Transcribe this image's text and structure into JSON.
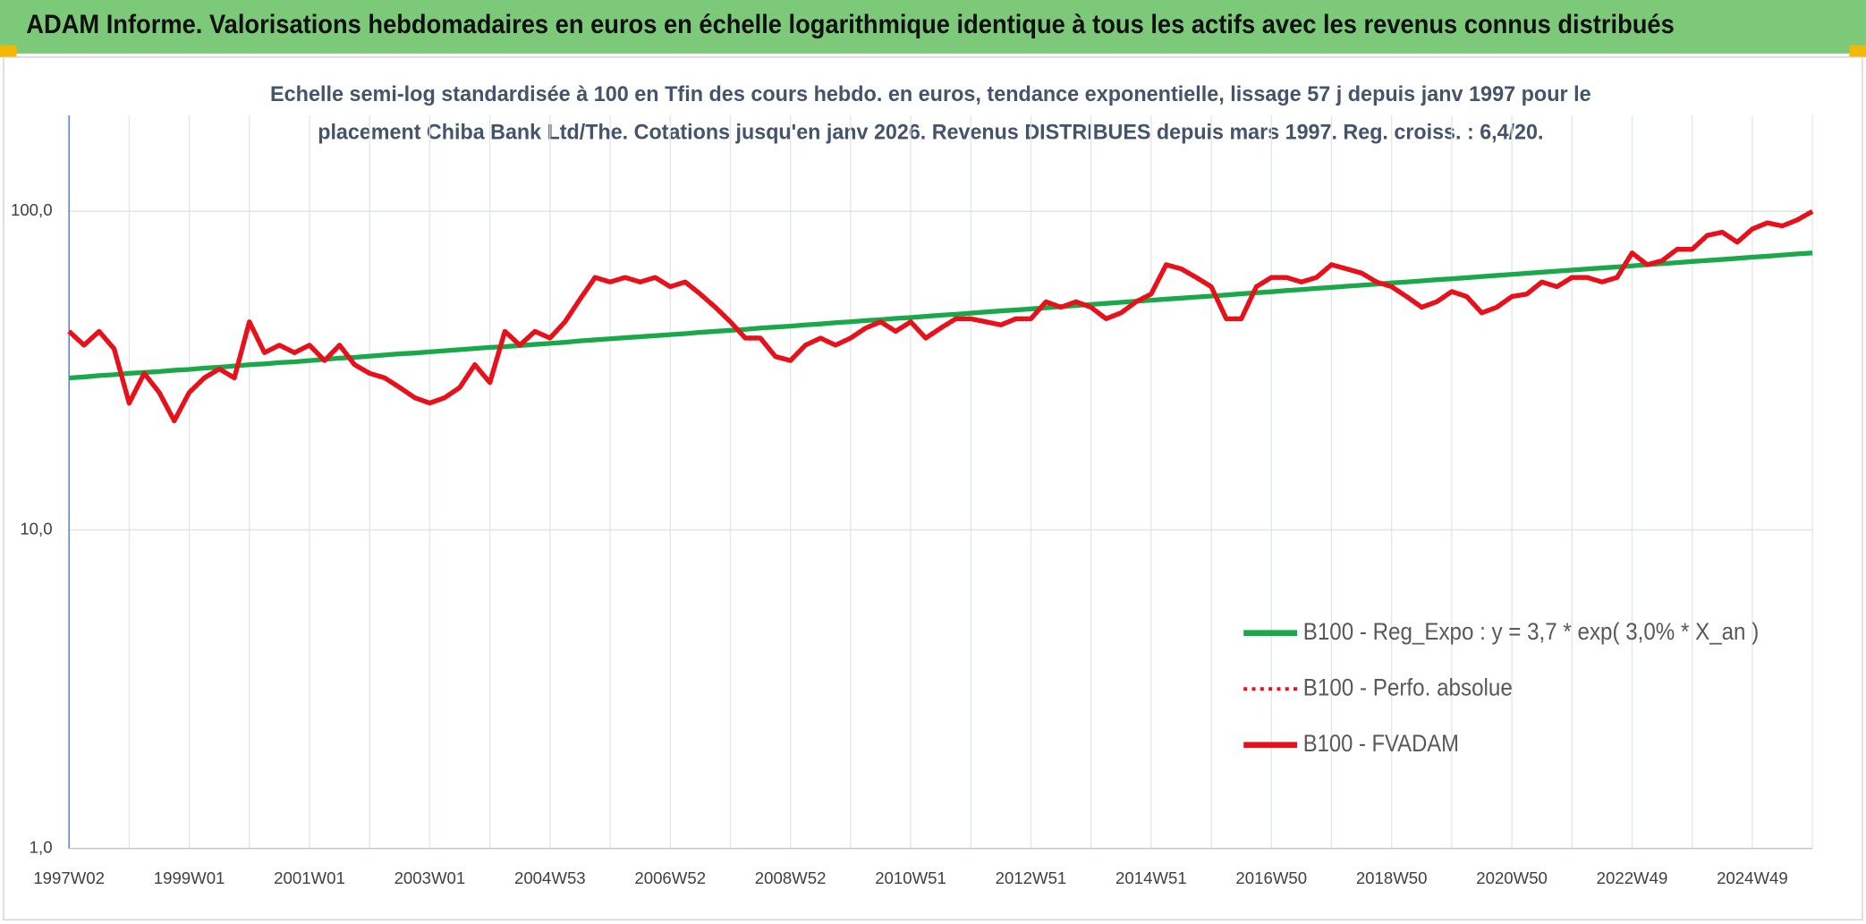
{
  "chart_data": {
    "type": "line",
    "title": "ADAM Informe. Valorisations hebdomadaires en euros en échelle logarithmique identique à tous les actifs avec les revenus connus distribués",
    "subtitle": [
      "Echelle semi-log standardisée à 100 en Tfin des cours hebdo. en euros, tendance exponentielle, lissage 57 j depuis janv 1997 pour le",
      "placement Chiba Bank Ltd/The. Cotations jusqu'en janv 2026. Revenus DISTRIBUES depuis mars 1997. Reg. croiss. : 6,4/20."
    ],
    "yscale": "log",
    "ylim": [
      1,
      200
    ],
    "yticks": [
      {
        "value": 1,
        "label": "1,0"
      },
      {
        "value": 10,
        "label": "10,0"
      },
      {
        "value": 100,
        "label": "100,0"
      }
    ],
    "grid": true,
    "legend": "right",
    "categories": [
      "1997W02",
      null,
      null,
      null,
      null,
      null,
      null,
      null,
      "1999W01",
      null,
      null,
      null,
      null,
      null,
      null,
      null,
      "2001W01",
      null,
      null,
      null,
      null,
      null,
      null,
      null,
      "2003W01",
      null,
      null,
      null,
      null,
      null,
      null,
      null,
      "2004W53",
      null,
      null,
      null,
      null,
      null,
      null,
      null,
      "2006W52",
      null,
      null,
      null,
      null,
      null,
      null,
      null,
      "2008W52",
      null,
      null,
      null,
      null,
      null,
      null,
      null,
      "2010W51",
      null,
      null,
      null,
      null,
      null,
      null,
      null,
      "2012W51",
      null,
      null,
      null,
      null,
      null,
      null,
      null,
      "2014W51",
      null,
      null,
      null,
      null,
      null,
      null,
      null,
      "2016W50",
      null,
      null,
      null,
      null,
      null,
      null,
      null,
      "2018W50",
      null,
      null,
      null,
      null,
      null,
      null,
      null,
      "2020W50",
      null,
      null,
      null,
      null,
      null,
      null,
      null,
      "2022W49",
      null,
      null,
      null,
      null,
      null,
      null,
      null,
      "2024W49",
      null,
      null,
      null,
      null
    ],
    "series": [
      {
        "name": "B100 - Reg_Expo : y = 3,7 * exp( 3,0% *  X_an )",
        "color": "#1aa84a",
        "style": "solid",
        "values": [
          30.0,
          30.2,
          30.5,
          30.7,
          31.0,
          31.2,
          31.4,
          31.7,
          31.9,
          32.2,
          32.4,
          32.7,
          33.0,
          33.2,
          33.5,
          33.7,
          34.0,
          34.3,
          34.6,
          34.8,
          35.1,
          35.4,
          35.7,
          35.9,
          36.2,
          36.5,
          36.8,
          37.1,
          37.4,
          37.6,
          37.9,
          38.2,
          38.5,
          38.8,
          39.2,
          39.5,
          39.8,
          40.1,
          40.4,
          40.7,
          41.0,
          41.3,
          41.7,
          42.0,
          42.3,
          42.6,
          43.0,
          43.3,
          43.6,
          44.0,
          44.3,
          44.7,
          45.0,
          45.4,
          45.7,
          46.1,
          46.4,
          46.8,
          47.2,
          47.5,
          47.9,
          48.3,
          48.7,
          49.0,
          49.4,
          49.8,
          50.2,
          50.6,
          51.0,
          51.4,
          51.8,
          52.2,
          52.6,
          53.0,
          53.4,
          53.8,
          54.2,
          54.6,
          55.1,
          55.5,
          55.9,
          56.4,
          56.8,
          57.3,
          57.7,
          58.2,
          58.6,
          59.1,
          59.6,
          60.0,
          60.5,
          61.0,
          61.4,
          61.9,
          62.4,
          62.9,
          63.4,
          63.9,
          64.4,
          64.9,
          65.4,
          65.9,
          66.4,
          66.9,
          67.4,
          68.0,
          68.5,
          69.0,
          69.6,
          70.1,
          70.6,
          71.2,
          71.8,
          72.3,
          72.9,
          73.5,
          74.0
        ]
      },
      {
        "name": "B100 - Perfo. absolue",
        "color": "#e8101a",
        "style": "dotted",
        "values": [
          42,
          38,
          42,
          37,
          25,
          31,
          27,
          22,
          27,
          30,
          32,
          30,
          45,
          36,
          38,
          36,
          38,
          34,
          38,
          33,
          31,
          30,
          28,
          26,
          25,
          26,
          28,
          33,
          29,
          42,
          38,
          42,
          40,
          45,
          53,
          62,
          60,
          62,
          60,
          62,
          58,
          60,
          55,
          50,
          45,
          40,
          40,
          35,
          34,
          38,
          40,
          38,
          40,
          43,
          45,
          42,
          45,
          40,
          43,
          46,
          46,
          45,
          44,
          46,
          46,
          52,
          50,
          52,
          50,
          46,
          48,
          52,
          55,
          68,
          66,
          62,
          58,
          46,
          46,
          58,
          62,
          62,
          60,
          62,
          68,
          66,
          64,
          60,
          58,
          54,
          50,
          52,
          56,
          54,
          48,
          50,
          54,
          55,
          60,
          58,
          62,
          62,
          60,
          62,
          74,
          68,
          70,
          76,
          76,
          84,
          86,
          80,
          88,
          92,
          90,
          94,
          100
        ]
      },
      {
        "name": "B100 - FVADAM",
        "color": "#e8101a",
        "style": "solid",
        "values": [
          42,
          38,
          42,
          37,
          25,
          31,
          27,
          22,
          27,
          30,
          32,
          30,
          45,
          36,
          38,
          36,
          38,
          34,
          38,
          33,
          31,
          30,
          28,
          26,
          25,
          26,
          28,
          33,
          29,
          42,
          38,
          42,
          40,
          45,
          53,
          62,
          60,
          62,
          60,
          62,
          58,
          60,
          55,
          50,
          45,
          40,
          40,
          35,
          34,
          38,
          40,
          38,
          40,
          43,
          45,
          42,
          45,
          40,
          43,
          46,
          46,
          45,
          44,
          46,
          46,
          52,
          50,
          52,
          50,
          46,
          48,
          52,
          55,
          68,
          66,
          62,
          58,
          46,
          46,
          58,
          62,
          62,
          60,
          62,
          68,
          66,
          64,
          60,
          58,
          54,
          50,
          52,
          56,
          54,
          48,
          50,
          54,
          55,
          60,
          58,
          62,
          62,
          60,
          62,
          74,
          68,
          70,
          76,
          76,
          84,
          86,
          80,
          88,
          92,
          90,
          94,
          100
        ]
      }
    ]
  }
}
